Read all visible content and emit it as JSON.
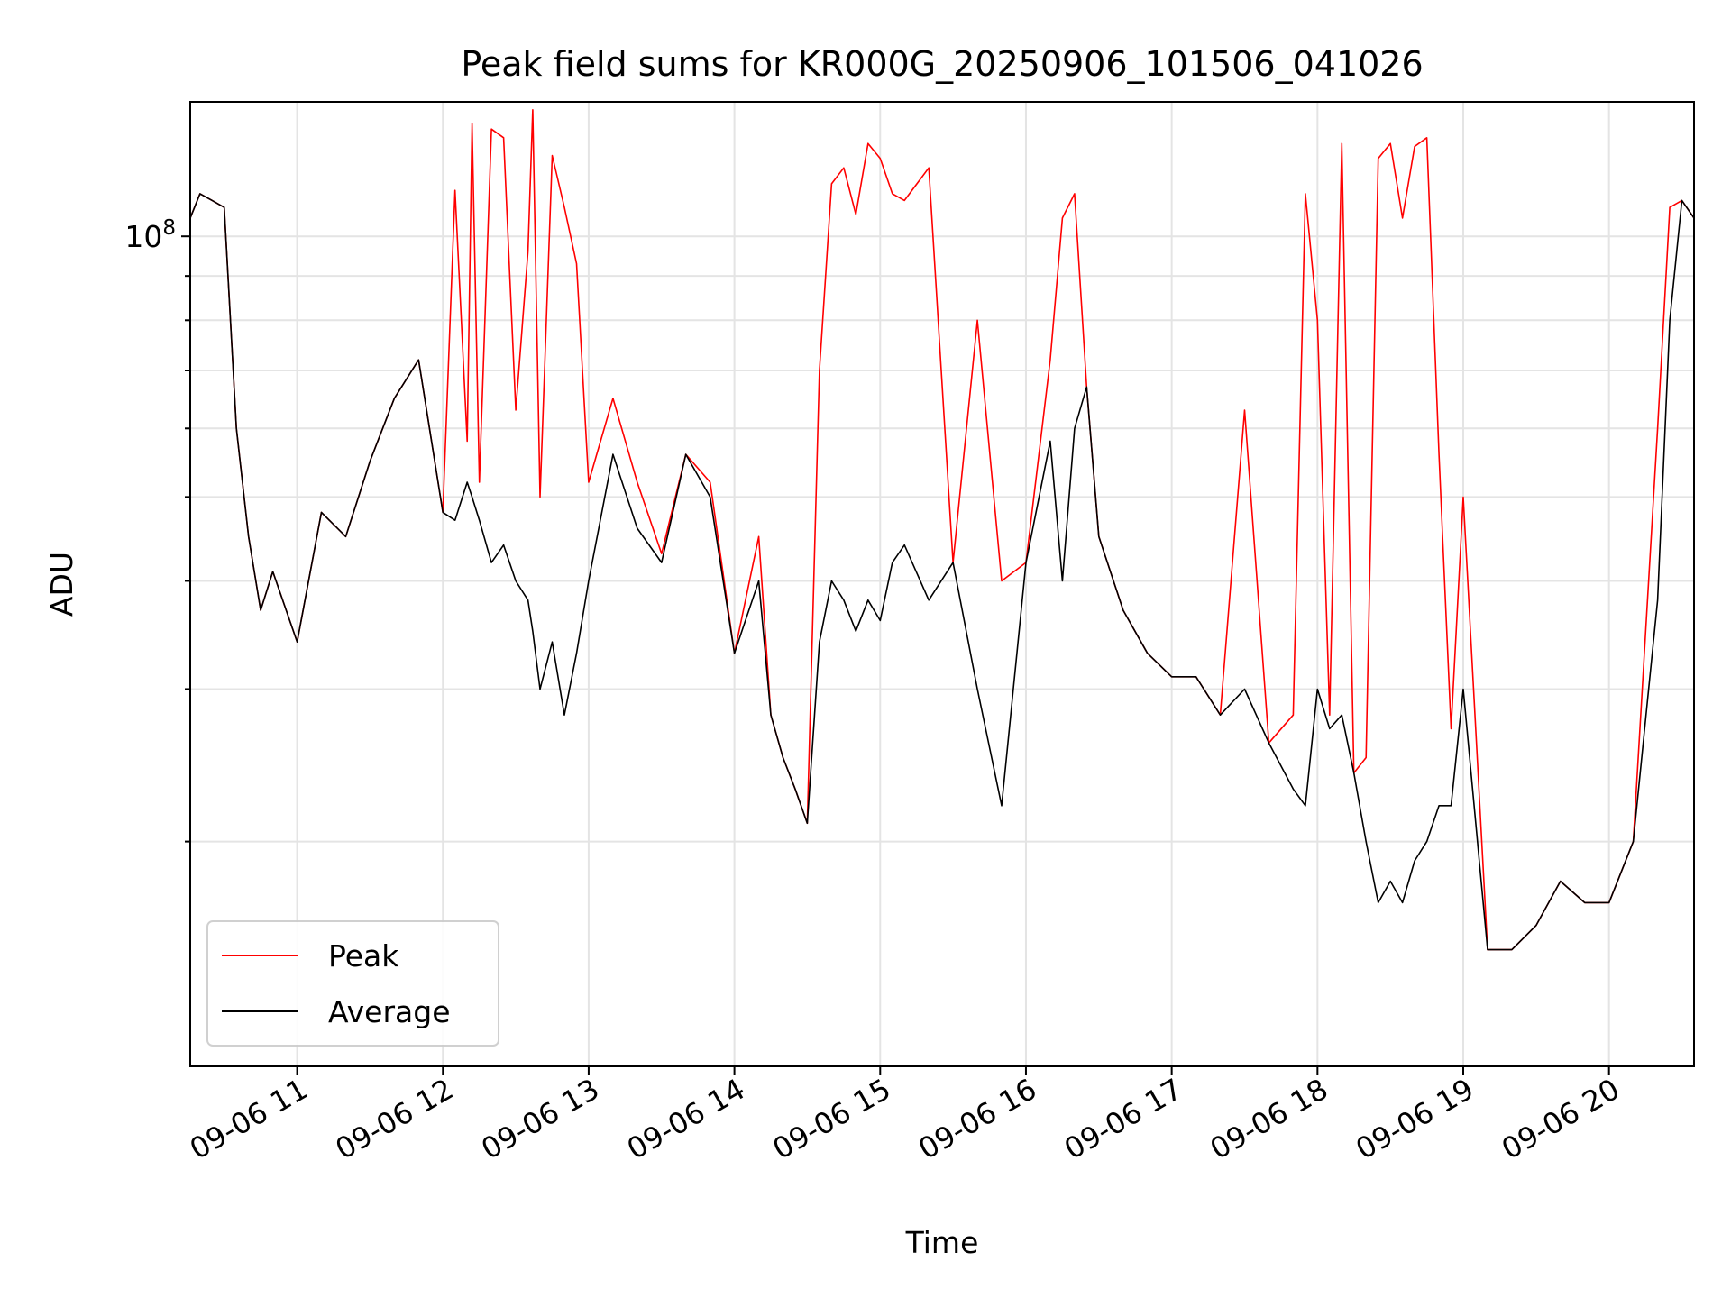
{
  "chart_data": {
    "type": "line",
    "title": "Peak field sums for KR000G_20250906_101506_041026",
    "xlabel": "Time",
    "ylabel": "ADU",
    "xlim": [
      "2025-09-06 10:16",
      "2025-09-06 20:35"
    ],
    "ylim": [
      11000000,
      143000000
    ],
    "y_scale": "log",
    "grid": true,
    "legend": "lower-left",
    "x_ticks": [
      "09-06 11",
      "09-06 12",
      "09-06 13",
      "09-06 14",
      "09-06 15",
      "09-06 16",
      "09-06 17",
      "09-06 18",
      "09-06 19",
      "09-06 20"
    ],
    "y_ticks": [
      {
        "value": 100000000,
        "base": "10",
        "exp": "8"
      }
    ],
    "series": [
      {
        "name": "Peak",
        "color": "#ff0000",
        "x": [
          "2025-09-06 10:16",
          "2025-09-06 10:20",
          "2025-09-06 10:25",
          "2025-09-06 10:30",
          "2025-09-06 10:35",
          "2025-09-06 10:40",
          "2025-09-06 10:45",
          "2025-09-06 10:50",
          "2025-09-06 11:00",
          "2025-09-06 11:10",
          "2025-09-06 11:20",
          "2025-09-06 11:30",
          "2025-09-06 11:40",
          "2025-09-06 11:50",
          "2025-09-06 12:00",
          "2025-09-06 12:05",
          "2025-09-06 12:10",
          "2025-09-06 12:12",
          "2025-09-06 12:15",
          "2025-09-06 12:20",
          "2025-09-06 12:25",
          "2025-09-06 12:30",
          "2025-09-06 12:35",
          "2025-09-06 12:37",
          "2025-09-06 12:40",
          "2025-09-06 12:45",
          "2025-09-06 12:50",
          "2025-09-06 12:55",
          "2025-09-06 13:00",
          "2025-09-06 13:10",
          "2025-09-06 13:20",
          "2025-09-06 13:30",
          "2025-09-06 13:40",
          "2025-09-06 13:50",
          "2025-09-06 14:00",
          "2025-09-06 14:10",
          "2025-09-06 14:15",
          "2025-09-06 14:20",
          "2025-09-06 14:25",
          "2025-09-06 14:30",
          "2025-09-06 14:35",
          "2025-09-06 14:40",
          "2025-09-06 14:45",
          "2025-09-06 14:50",
          "2025-09-06 14:55",
          "2025-09-06 15:00",
          "2025-09-06 15:05",
          "2025-09-06 15:10",
          "2025-09-06 15:20",
          "2025-09-06 15:30",
          "2025-09-06 15:40",
          "2025-09-06 15:50",
          "2025-09-06 16:00",
          "2025-09-06 16:10",
          "2025-09-06 16:15",
          "2025-09-06 16:20",
          "2025-09-06 16:25",
          "2025-09-06 16:30",
          "2025-09-06 16:40",
          "2025-09-06 16:50",
          "2025-09-06 17:00",
          "2025-09-06 17:10",
          "2025-09-06 17:20",
          "2025-09-06 17:30",
          "2025-09-06 17:40",
          "2025-09-06 17:50",
          "2025-09-06 17:55",
          "2025-09-06 18:00",
          "2025-09-06 18:05",
          "2025-09-06 18:10",
          "2025-09-06 18:15",
          "2025-09-06 18:20",
          "2025-09-06 18:25",
          "2025-09-06 18:30",
          "2025-09-06 18:35",
          "2025-09-06 18:40",
          "2025-09-06 18:45",
          "2025-09-06 18:50",
          "2025-09-06 18:55",
          "2025-09-06 19:00",
          "2025-09-06 19:10",
          "2025-09-06 19:20",
          "2025-09-06 19:30",
          "2025-09-06 19:40",
          "2025-09-06 19:50",
          "2025-09-06 20:00",
          "2025-09-06 20:10",
          "2025-09-06 20:20",
          "2025-09-06 20:25",
          "2025-09-06 20:30",
          "2025-09-06 20:35"
        ],
        "y": [
          105000000,
          112000000,
          110000000,
          108000000,
          60000000,
          45000000,
          37000000,
          41000000,
          34000000,
          48000000,
          45000000,
          55000000,
          65000000,
          72000000,
          48000000,
          113000000,
          58000000,
          135000000,
          52000000,
          133000000,
          130000000,
          63000000,
          96000000,
          140000000,
          50000000,
          124000000,
          108000000,
          93000000,
          52000000,
          65000000,
          52000000,
          43000000,
          56000000,
          52000000,
          33000000,
          45000000,
          28000000,
          25000000,
          23000000,
          21000000,
          70000000,
          115000000,
          120000000,
          106000000,
          128000000,
          123000000,
          112000000,
          110000000,
          120000000,
          42000000,
          80000000,
          40000000,
          42000000,
          72000000,
          105000000,
          112000000,
          67000000,
          45000000,
          37000000,
          33000000,
          31000000,
          31000000,
          28000000,
          63000000,
          26000000,
          28000000,
          112000000,
          80000000,
          28000000,
          128000000,
          24000000,
          25000000,
          123000000,
          128000000,
          105000000,
          127000000,
          130000000,
          56000000,
          27000000,
          50000000,
          15000000,
          15000000,
          16000000,
          18000000,
          17000000,
          17000000,
          20000000,
          60000000,
          108000000,
          110000000,
          105000000
        ]
      },
      {
        "name": "Average",
        "color": "#000000",
        "x": [
          "2025-09-06 10:16",
          "2025-09-06 10:20",
          "2025-09-06 10:25",
          "2025-09-06 10:30",
          "2025-09-06 10:35",
          "2025-09-06 10:40",
          "2025-09-06 10:45",
          "2025-09-06 10:50",
          "2025-09-06 11:00",
          "2025-09-06 11:10",
          "2025-09-06 11:20",
          "2025-09-06 11:30",
          "2025-09-06 11:40",
          "2025-09-06 11:50",
          "2025-09-06 12:00",
          "2025-09-06 12:05",
          "2025-09-06 12:10",
          "2025-09-06 12:12",
          "2025-09-06 12:15",
          "2025-09-06 12:20",
          "2025-09-06 12:25",
          "2025-09-06 12:30",
          "2025-09-06 12:35",
          "2025-09-06 12:37",
          "2025-09-06 12:40",
          "2025-09-06 12:45",
          "2025-09-06 12:50",
          "2025-09-06 12:55",
          "2025-09-06 13:00",
          "2025-09-06 13:10",
          "2025-09-06 13:20",
          "2025-09-06 13:30",
          "2025-09-06 13:40",
          "2025-09-06 13:50",
          "2025-09-06 14:00",
          "2025-09-06 14:10",
          "2025-09-06 14:15",
          "2025-09-06 14:20",
          "2025-09-06 14:25",
          "2025-09-06 14:30",
          "2025-09-06 14:35",
          "2025-09-06 14:40",
          "2025-09-06 14:45",
          "2025-09-06 14:50",
          "2025-09-06 14:55",
          "2025-09-06 15:00",
          "2025-09-06 15:05",
          "2025-09-06 15:10",
          "2025-09-06 15:20",
          "2025-09-06 15:30",
          "2025-09-06 15:40",
          "2025-09-06 15:50",
          "2025-09-06 16:00",
          "2025-09-06 16:10",
          "2025-09-06 16:15",
          "2025-09-06 16:20",
          "2025-09-06 16:25",
          "2025-09-06 16:30",
          "2025-09-06 16:40",
          "2025-09-06 16:50",
          "2025-09-06 17:00",
          "2025-09-06 17:10",
          "2025-09-06 17:20",
          "2025-09-06 17:30",
          "2025-09-06 17:40",
          "2025-09-06 17:50",
          "2025-09-06 17:55",
          "2025-09-06 18:00",
          "2025-09-06 18:05",
          "2025-09-06 18:10",
          "2025-09-06 18:15",
          "2025-09-06 18:20",
          "2025-09-06 18:25",
          "2025-09-06 18:30",
          "2025-09-06 18:35",
          "2025-09-06 18:40",
          "2025-09-06 18:45",
          "2025-09-06 18:50",
          "2025-09-06 18:55",
          "2025-09-06 19:00",
          "2025-09-06 19:10",
          "2025-09-06 19:20",
          "2025-09-06 19:30",
          "2025-09-06 19:40",
          "2025-09-06 19:50",
          "2025-09-06 20:00",
          "2025-09-06 20:10",
          "2025-09-06 20:20",
          "2025-09-06 20:25",
          "2025-09-06 20:30",
          "2025-09-06 20:35"
        ],
        "y": [
          105000000,
          112000000,
          110000000,
          108000000,
          60000000,
          45000000,
          37000000,
          41000000,
          34000000,
          48000000,
          45000000,
          55000000,
          65000000,
          72000000,
          48000000,
          47000000,
          52000000,
          50000000,
          47000000,
          42000000,
          44000000,
          40000000,
          38000000,
          35000000,
          30000000,
          34000000,
          28000000,
          33000000,
          40000000,
          56000000,
          46000000,
          42000000,
          56000000,
          50000000,
          33000000,
          40000000,
          28000000,
          25000000,
          23000000,
          21000000,
          34000000,
          40000000,
          38000000,
          35000000,
          38000000,
          36000000,
          42000000,
          44000000,
          38000000,
          42000000,
          30000000,
          22000000,
          42000000,
          58000000,
          40000000,
          60000000,
          67000000,
          45000000,
          37000000,
          33000000,
          31000000,
          31000000,
          28000000,
          30000000,
          26000000,
          23000000,
          22000000,
          30000000,
          27000000,
          28000000,
          24000000,
          20000000,
          17000000,
          18000000,
          17000000,
          19000000,
          20000000,
          22000000,
          22000000,
          30000000,
          15000000,
          15000000,
          16000000,
          18000000,
          17000000,
          17000000,
          20000000,
          38000000,
          80000000,
          110000000,
          105000000
        ]
      }
    ]
  }
}
